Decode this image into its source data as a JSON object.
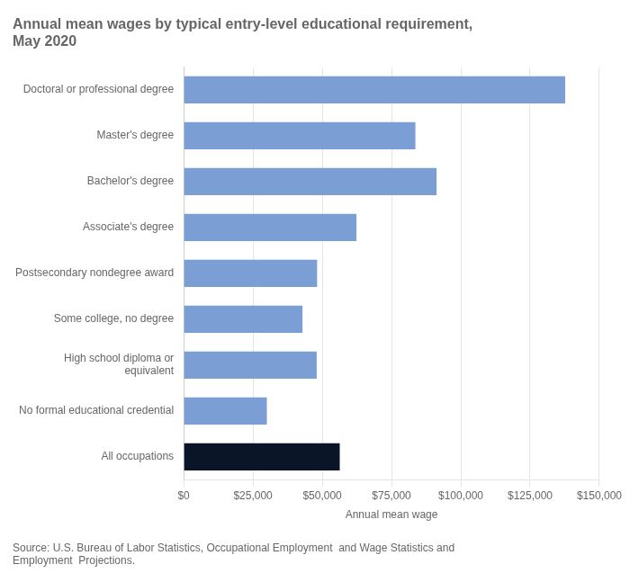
{
  "chart_data": {
    "type": "bar",
    "orientation": "horizontal",
    "title": "Annual mean wages by typical entry-level educational requirement,\nMay 2020",
    "xlabel": "Annual mean wage",
    "annotation": "Source: U.S. Bureau of Labor Statistics, Occupational Employment  and Wage Statistics and\nEmployment  Projections.",
    "categories": [
      "All occupations",
      "No formal educational credential",
      "High school diploma or\nequivalent",
      "Some college, no degree",
      "Postsecondary nondegree award",
      "Associate's degree",
      "Bachelor's degree",
      "Master's degree",
      "Doctoral or professional degree"
    ],
    "values": [
      56310,
      30010,
      47990,
      42870,
      48140,
      62340,
      91250,
      83610,
      137660
    ],
    "colors": [
      "#0a1628",
      "#7b9fd4",
      "#7b9fd4",
      "#7b9fd4",
      "#7b9fd4",
      "#7b9fd4",
      "#7b9fd4",
      "#7b9fd4",
      "#7b9fd4"
    ],
    "xlim": [
      0,
      150000
    ],
    "xticks": [
      {
        "value": 0,
        "label": "$0"
      },
      {
        "value": 25000,
        "label": "$25,000"
      },
      {
        "value": 50000,
        "label": "$50,000"
      },
      {
        "value": 75000,
        "label": "$75,000"
      },
      {
        "value": 100000,
        "label": "$100,000"
      },
      {
        "value": 125000,
        "label": "$125,000"
      },
      {
        "value": 150000,
        "label": "$150,000"
      }
    ],
    "grid": true
  }
}
